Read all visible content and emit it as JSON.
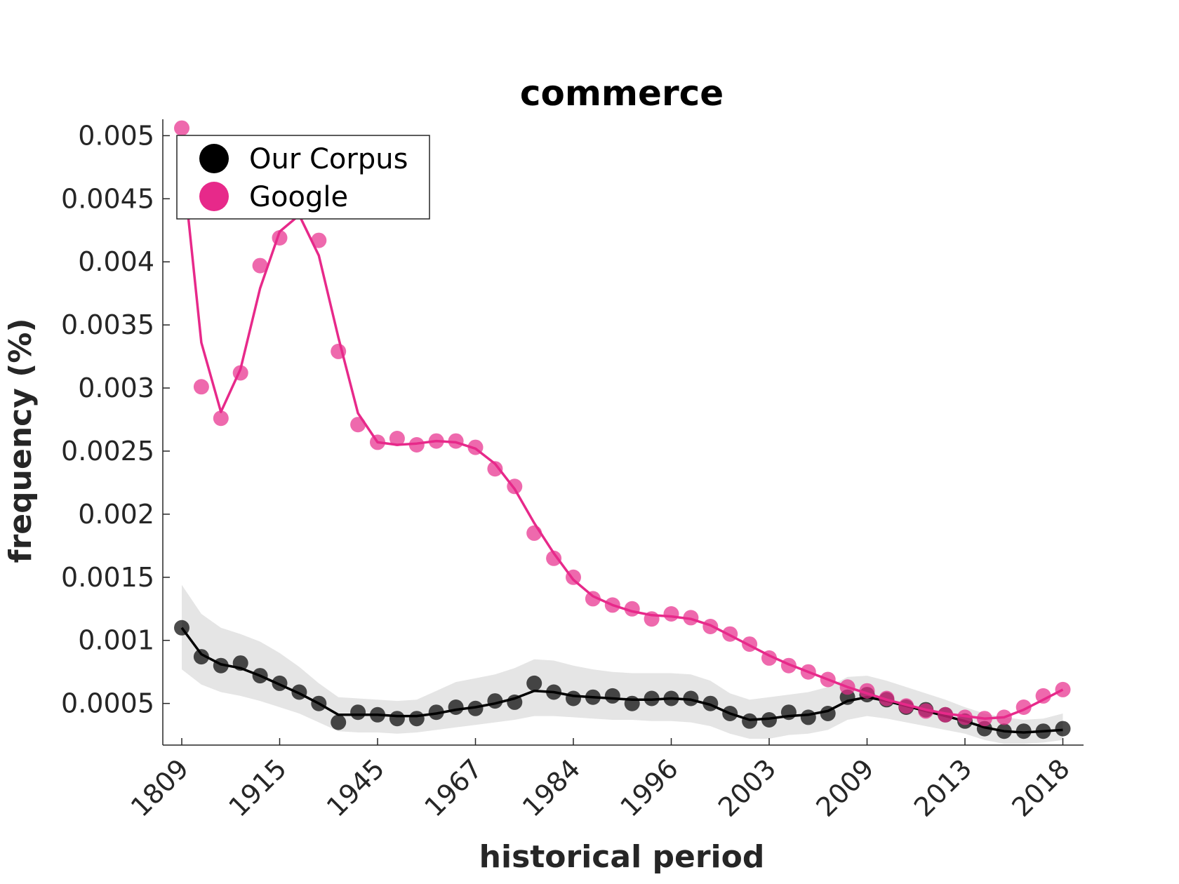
{
  "chart_data": {
    "type": "line",
    "title": "commerce",
    "xlabel": "historical period",
    "ylabel": "frequency (%)",
    "ylim": [
      0.00017,
      0.00513
    ],
    "yticks": [
      0.0005,
      0.001,
      0.0015,
      0.002,
      0.0025,
      0.003,
      0.0035,
      0.004,
      0.0045,
      0.005
    ],
    "ytick_labels": [
      "0.0005",
      "0.001",
      "0.0015",
      "0.002",
      "0.0025",
      "0.003",
      "0.0035",
      "0.004",
      "0.0045",
      "0.005"
    ],
    "xtick_positions": [
      1,
      6,
      11,
      16,
      21,
      26,
      31,
      36,
      41,
      46
    ],
    "xtick_labels": [
      "1809",
      "1915",
      "1945",
      "1967",
      "1984",
      "1996",
      "2003",
      "2009",
      "2013",
      "2018"
    ],
    "x": [
      1,
      2,
      3,
      4,
      5,
      6,
      7,
      8,
      9,
      10,
      11,
      12,
      13,
      14,
      15,
      16,
      17,
      18,
      19,
      20,
      21,
      22,
      23,
      24,
      25,
      26,
      27,
      28,
      29,
      30,
      31,
      32,
      33,
      34,
      35,
      36,
      37,
      38,
      39,
      40,
      41,
      42,
      43,
      44,
      45,
      46
    ],
    "legend_position": "top-left",
    "grid": false,
    "series": [
      {
        "name": "Our Corpus",
        "color": "#000000",
        "points": [
          0.0011,
          0.00087,
          0.0008,
          0.00082,
          0.00072,
          0.00066,
          0.00059,
          0.0005,
          0.00035,
          0.00043,
          0.00041,
          0.00038,
          0.00038,
          0.00043,
          0.00047,
          0.00046,
          0.00052,
          0.00051,
          0.00066,
          0.00059,
          0.00054,
          0.00055,
          0.00056,
          0.0005,
          0.00054,
          0.00054,
          0.00054,
          0.0005,
          0.00042,
          0.00036,
          0.00037,
          0.00043,
          0.00039,
          0.00042,
          0.00055,
          0.00057,
          0.00053,
          0.00047,
          0.00045,
          0.00041,
          0.00036,
          0.0003,
          0.00028,
          0.00028,
          0.00028,
          0.0003
        ],
        "trend": [
          0.0011,
          0.00089,
          0.00081,
          0.00078,
          0.00072,
          0.00065,
          0.00058,
          0.0005,
          0.00041,
          0.00041,
          0.00041,
          0.0004,
          0.0004,
          0.00042,
          0.00045,
          0.00047,
          0.0005,
          0.00054,
          0.0006,
          0.00059,
          0.00056,
          0.00055,
          0.00054,
          0.00053,
          0.00053,
          0.00054,
          0.00053,
          0.00049,
          0.00042,
          0.00037,
          0.00038,
          0.0004,
          0.00041,
          0.00044,
          0.00052,
          0.00055,
          0.00052,
          0.00048,
          0.00044,
          0.0004,
          0.00036,
          0.00031,
          0.00028,
          0.00027,
          0.00028,
          0.00029
        ],
        "band_upper": [
          0.00144,
          0.00121,
          0.0011,
          0.00105,
          0.00099,
          0.0009,
          0.00079,
          0.00066,
          0.00055,
          0.00054,
          0.00053,
          0.00052,
          0.00053,
          0.0006,
          0.00067,
          0.0007,
          0.00073,
          0.00078,
          0.00085,
          0.00084,
          0.0008,
          0.00077,
          0.00075,
          0.00074,
          0.00074,
          0.00074,
          0.00073,
          0.00068,
          0.00058,
          0.00053,
          0.00055,
          0.00057,
          0.00059,
          0.00063,
          0.00071,
          0.00072,
          0.00068,
          0.00063,
          0.00058,
          0.00053,
          0.00047,
          0.00042,
          0.00039,
          0.00037,
          0.00038,
          0.00042
        ],
        "band_lower": [
          0.00077,
          0.00065,
          0.00059,
          0.00056,
          0.00052,
          0.00047,
          0.00042,
          0.00035,
          0.00028,
          0.00027,
          0.00027,
          0.00026,
          0.00027,
          0.00029,
          0.00031,
          0.00033,
          0.00035,
          0.00037,
          0.0004,
          0.0004,
          0.00039,
          0.00038,
          0.00037,
          0.00037,
          0.00036,
          0.00036,
          0.00035,
          0.00032,
          0.00026,
          0.00022,
          0.00022,
          0.00025,
          0.00026,
          0.00029,
          0.00037,
          0.0004,
          0.00038,
          0.00035,
          0.00032,
          0.00029,
          0.00026,
          0.00021,
          0.00018,
          0.00018,
          0.00019,
          0.00021
        ]
      },
      {
        "name": "Google",
        "color": "#e7298a",
        "points": [
          0.00506,
          0.00301,
          0.00276,
          0.00312,
          0.00397,
          0.00419,
          0.0044,
          0.00417,
          0.00329,
          0.00271,
          0.00257,
          0.0026,
          0.00255,
          0.00258,
          0.00258,
          0.00253,
          0.00236,
          0.00222,
          0.00185,
          0.00165,
          0.0015,
          0.00133,
          0.00128,
          0.00125,
          0.00117,
          0.00121,
          0.00118,
          0.00111,
          0.00105,
          0.00097,
          0.00086,
          0.0008,
          0.00075,
          0.00069,
          0.00063,
          0.0006,
          0.00054,
          0.00048,
          0.00044,
          0.00041,
          0.00039,
          0.00038,
          0.00039,
          0.00047,
          0.00056,
          0.00061
        ],
        "trend": [
          0.00485,
          0.00336,
          0.00281,
          0.00315,
          0.00379,
          0.00424,
          0.00437,
          0.00405,
          0.0034,
          0.0028,
          0.00257,
          0.00255,
          0.00256,
          0.00258,
          0.00257,
          0.00252,
          0.0024,
          0.0022,
          0.00193,
          0.00169,
          0.00148,
          0.00135,
          0.00128,
          0.00123,
          0.0012,
          0.00119,
          0.00117,
          0.00112,
          0.00104,
          0.00096,
          0.00088,
          0.00081,
          0.00075,
          0.00069,
          0.00063,
          0.00058,
          0.00053,
          0.00049,
          0.00045,
          0.00042,
          0.0004,
          0.00038,
          0.00039,
          0.00045,
          0.00053,
          0.00061
        ]
      }
    ]
  }
}
